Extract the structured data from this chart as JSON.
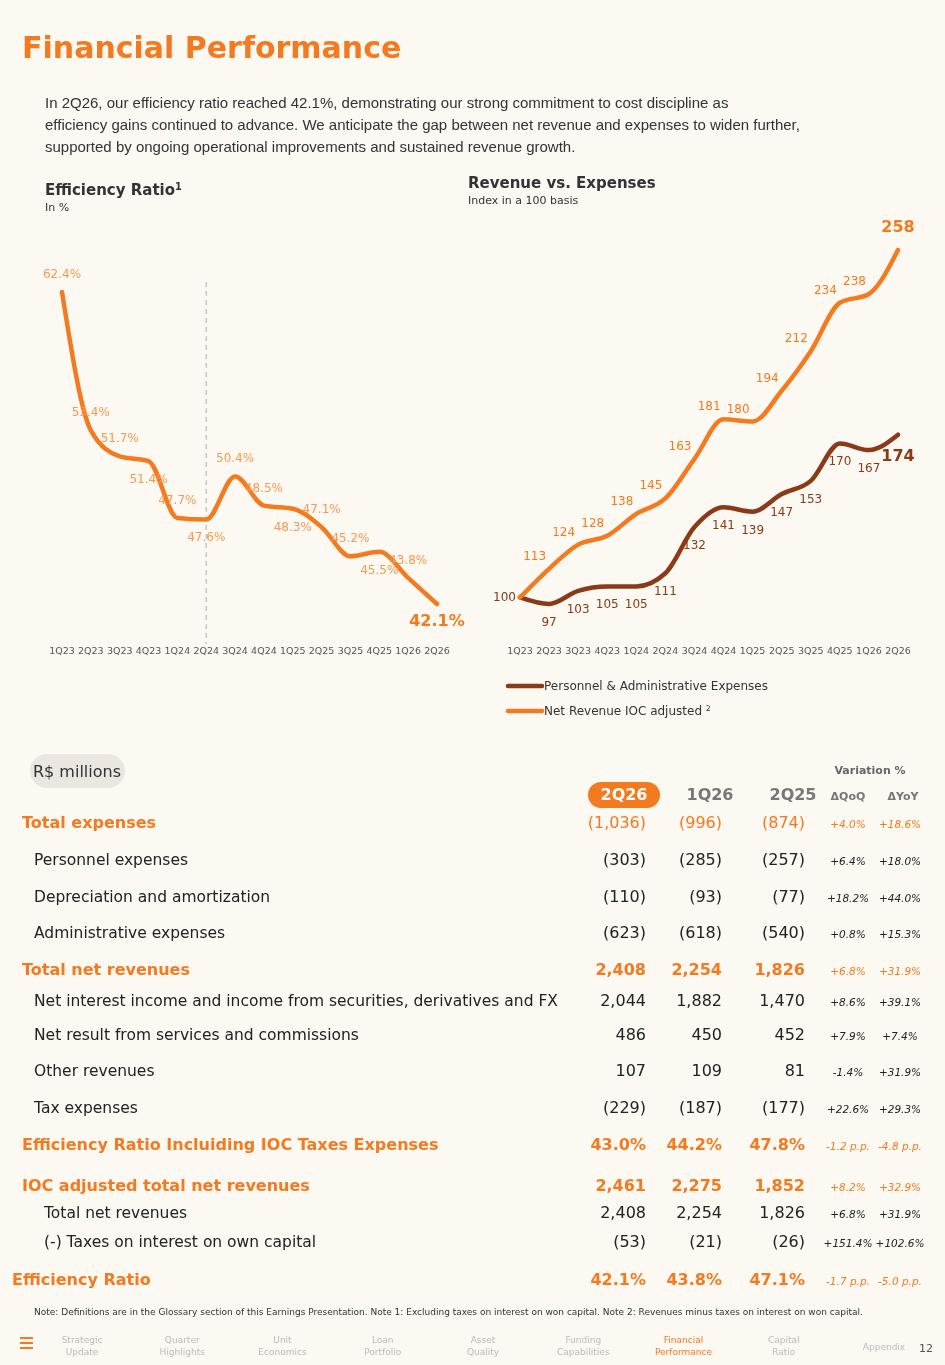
{
  "chart_data": [
    {
      "type": "other",
      "title": "Financial Performance",
      "annotations": [
        "In 2Q26, our efficiency ratio reached 42.1%, demonstrating our strong commitment to cost discipline as efficiency gains continued to advance. We anticipate the gap between net revenue and expenses to widen further, supported by ongoing operational improvements and sustained revenue growth."
      ]
    },
    {
      "type": "line",
      "title": "Efficiency Ratio$^{1}$",
      "subtitle": "In %",
      "categories": [
        "1Q23",
        "2Q23",
        "3Q23",
        "4Q23",
        "1Q24",
        "2Q24",
        "3Q24",
        "4Q24",
        "1Q25",
        "2Q25",
        "3Q25",
        "4Q25",
        "1Q26",
        "2Q26"
      ],
      "series": [
        {
          "color": "#f47a20",
          "values": [
            62.4,
            53.4,
            51.7,
            51.4,
            47.7,
            47.6,
            50.4,
            48.5,
            48.3,
            47.1,
            45.2,
            45.5,
            43.8,
            42.1
          ],
          "value_labels": [
            "62.4%",
            "53.4%",
            "51.7%",
            "51.4%",
            "47.7%",
            "47.6%",
            "50.4%",
            "48.5%",
            "48.3%",
            "47.1%",
            "45.2%",
            "45.5%",
            "43.8%",
            "42.1%"
          ]
        }
      ],
      "ref_lines": [
        {
          "axis": "x",
          "value": "2Q24",
          "color": "#c8c8c8",
          "line_style": "dashed"
        }
      ],
      "tick_labels": "x"
    },
    {
      "type": "line",
      "title": "Revenue vs. Expenses",
      "subtitle": "Index in a 100 basis",
      "categories": [
        "1Q23",
        "2Q23",
        "3Q23",
        "4Q23",
        "1Q24",
        "2Q24",
        "3Q24",
        "4Q24",
        "1Q25",
        "2Q25",
        "3Q25",
        "4Q25",
        "1Q26",
        "2Q26"
      ],
      "series": [
        {
          "name": "Personnel & Administrative Expenses",
          "color": "#8a3a17",
          "values": [
            100,
            97,
            103,
            105,
            105,
            111,
            132,
            141,
            139,
            147,
            153,
            170,
            167,
            174
          ],
          "value_labels": [
            "100",
            "97",
            "103",
            "105",
            "105",
            "111",
            "132",
            "141",
            "139",
            "147",
            "153",
            "170",
            "167",
            "174"
          ]
        },
        {
          "name": "Net Revenue IOC adjusted $^{2}$",
          "color": "#f47a20",
          "values": [
            100,
            113,
            124,
            128,
            138,
            145,
            163,
            181,
            180,
            194,
            212,
            234,
            238,
            258
          ],
          "value_labels": [
            null,
            "113",
            "124",
            "128",
            "138",
            "145",
            "163",
            "181",
            "180",
            "194",
            "212",
            "234",
            "238",
            "258"
          ]
        }
      ],
      "legend": "bottom",
      "tick_labels": "x"
    },
    {
      "type": "other",
      "title": "R$ millions",
      "subtitle": "Variation %",
      "categories": [
        "2Q26",
        "1Q26",
        "2Q25",
        "ΔQoQ",
        "ΔYoY"
      ],
      "y_categories": [
        "Total expenses",
        "Personnel expenses",
        "Depreciation and amortization",
        "Administrative expenses",
        "Total net revenues",
        "Net interest income and income from securities, derivatives and FX",
        "Net result from services and commissions",
        "Other revenues",
        "Tax expenses",
        "Efficiency Ratio Incluiding IOC Taxes Expenses",
        "IOC adjusted total net revenues",
        "Total net revenues",
        "(-) Taxes on interest on own capital",
        "Efficiency Ratio"
      ],
      "cell_labels": [
        [
          "(1,036)",
          "(996)",
          "(874)",
          "+4.0%",
          "+18.6%"
        ],
        [
          "(303)",
          "(285)",
          "(257)",
          "+6.4%",
          "+18.0%"
        ],
        [
          "(110)",
          "(93)",
          "(77)",
          "+18.2%",
          "+44.0%"
        ],
        [
          "(623)",
          "(618)",
          "(540)",
          "+0.8%",
          "+15.3%"
        ],
        [
          "2,408",
          "2,254",
          "1,826",
          "+6.8%",
          "+31.9%"
        ],
        [
          "2,044",
          "1,882",
          "1,470",
          "+8.6%",
          "+39.1%"
        ],
        [
          "486",
          "450",
          "452",
          "+7.9%",
          "+7.4%"
        ],
        [
          "107",
          "109",
          "81",
          "-1.4%",
          "+31.9%"
        ],
        [
          "(229)",
          "(187)",
          "(177)",
          "+22.6%",
          "+29.3%"
        ],
        [
          "43.0%",
          "44.2%",
          "47.8%",
          "-1.2 p.p.",
          "-4.8 p.p."
        ],
        [
          "2,461",
          "2,275",
          "1,852",
          "+8.2%",
          "+32.9%"
        ],
        [
          "2,408",
          "2,254",
          "1,826",
          "+6.8%",
          "+31.9%"
        ],
        [
          "(53)",
          "(21)",
          "(26)",
          "+151.4%",
          "+102.6%"
        ],
        [
          "42.1%",
          "43.8%",
          "47.1%",
          "-1.7 p.p.",
          "-5.0 p.p."
        ]
      ],
      "annotations": [
        "Note: Definitions are in the Glossary section of this Earnings Presentation. Note 1: Excluding taxes on interest on won capital. Note 2: Revenues minus taxes on interest on won capital."
      ]
    },
    {
      "type": "other",
      "categories": [
        "Strategic Update",
        "Quarter Highlights",
        "Unit Economics",
        "Loan Portfolio",
        "Asset Quality",
        "Funding Capabilities",
        "Financial Performance",
        "Capital Ratio",
        "Appendix"
      ],
      "annotations": [
        "12"
      ]
    }
  ]
}
